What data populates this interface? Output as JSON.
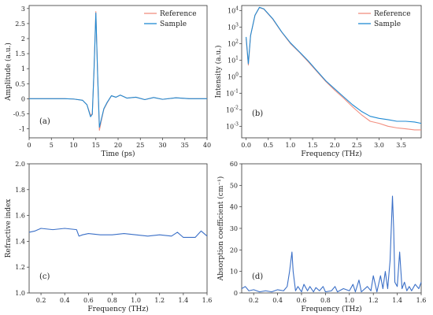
{
  "colors": {
    "reference": "#f28e7f",
    "sample": "#1f8ad3",
    "blue_line": "#3a6fc7"
  },
  "chart_data": [
    {
      "id": "a",
      "type": "line",
      "panel_label": "(a)",
      "xlabel": "Time (ps)",
      "ylabel": "Amplitude (a.u.)",
      "xlim": [
        0,
        40
      ],
      "ylim": [
        -1.3,
        3.1
      ],
      "xticks": [
        0,
        5,
        10,
        15,
        20,
        25,
        30,
        35,
        40
      ],
      "yticks": [
        -1.0,
        -0.5,
        0.0,
        0.5,
        1.0,
        1.5,
        2.0,
        2.5,
        3.0
      ],
      "legend": {
        "position": "top-right",
        "entries": [
          "Reference",
          "Sample"
        ]
      },
      "series": [
        {
          "name": "Reference",
          "x": [
            0,
            8,
            10,
            12,
            13,
            13.8,
            14.2,
            14.6,
            15.0,
            15.4,
            15.8,
            16.2,
            16.8,
            17.5,
            18.5,
            19.5,
            20.5,
            22,
            24,
            26,
            28,
            30,
            33,
            36,
            40
          ],
          "y": [
            0,
            0,
            -0.01,
            -0.05,
            -0.2,
            -0.55,
            -0.5,
            1.0,
            2.9,
            0.8,
            -1.05,
            -0.75,
            -0.35,
            -0.15,
            0.1,
            0.05,
            0.12,
            0.02,
            0.05,
            -0.03,
            0.04,
            -0.02,
            0.03,
            0.0,
            0.0
          ]
        },
        {
          "name": "Sample",
          "x": [
            0,
            8,
            10,
            12,
            13,
            13.8,
            14.2,
            14.6,
            15.0,
            15.4,
            15.8,
            16.2,
            16.8,
            17.5,
            18.5,
            19.5,
            20.5,
            22,
            24,
            26,
            28,
            30,
            33,
            36,
            40
          ],
          "y": [
            0,
            0,
            -0.01,
            -0.05,
            -0.2,
            -0.6,
            -0.52,
            1.0,
            2.85,
            0.8,
            -0.95,
            -0.7,
            -0.33,
            -0.13,
            0.1,
            0.05,
            0.12,
            0.02,
            0.05,
            -0.03,
            0.04,
            -0.02,
            0.03,
            0.0,
            0.0
          ]
        }
      ]
    },
    {
      "id": "b",
      "type": "line",
      "panel_label": "(b)",
      "xlabel": "Frequency (THz)",
      "ylabel": "Intensity (a.u.)",
      "yscale": "log",
      "xlim": [
        -0.1,
        3.95
      ],
      "ylim": [
        0.0002,
        20000
      ],
      "xticks": [
        "0.0",
        "0.5",
        "1.0",
        "1.5",
        "2.0",
        "2.5",
        "3.0",
        "3.5"
      ],
      "yticks": [
        "10^-3",
        "10^-2",
        "10^-1",
        "10^0",
        "10^1",
        "10^2",
        "10^3",
        "10^4"
      ],
      "legend": {
        "position": "top-right",
        "entries": [
          "Reference",
          "Sample"
        ]
      },
      "series": [
        {
          "name": "Reference",
          "x": [
            0.0,
            0.05,
            0.1,
            0.2,
            0.3,
            0.4,
            0.6,
            0.8,
            1.0,
            1.2,
            1.4,
            1.6,
            1.8,
            2.0,
            2.2,
            2.4,
            2.6,
            2.8,
            3.0,
            3.2,
            3.4,
            3.6,
            3.8,
            3.95
          ],
          "y": [
            200,
            5,
            300,
            5000,
            15000,
            12000,
            3000,
            500,
            100,
            30,
            8,
            2,
            0.5,
            0.15,
            0.05,
            0.015,
            0.005,
            0.002,
            0.0015,
            0.001,
            0.0008,
            0.0007,
            0.0006,
            0.0006
          ]
        },
        {
          "name": "Sample",
          "x": [
            0.0,
            0.05,
            0.1,
            0.2,
            0.3,
            0.4,
            0.6,
            0.8,
            1.0,
            1.2,
            1.4,
            1.6,
            1.8,
            2.0,
            2.2,
            2.4,
            2.6,
            2.8,
            3.0,
            3.2,
            3.4,
            3.6,
            3.8,
            3.95
          ],
          "y": [
            250,
            6,
            300,
            5200,
            15500,
            12500,
            3200,
            520,
            110,
            32,
            9,
            2.2,
            0.55,
            0.18,
            0.06,
            0.02,
            0.008,
            0.004,
            0.003,
            0.0025,
            0.002,
            0.002,
            0.0018,
            0.0015
          ]
        }
      ]
    },
    {
      "id": "c",
      "type": "line",
      "panel_label": "(c)",
      "xlabel": "Frequency (THz)",
      "ylabel": "Refractive index",
      "xlim": [
        0.1,
        1.6
      ],
      "ylim": [
        1.0,
        2.0
      ],
      "xticks": [
        "0.2",
        "0.4",
        "0.6",
        "0.8",
        "1.0",
        "1.2",
        "1.4",
        "1.6"
      ],
      "yticks": [
        "1.0",
        "1.2",
        "1.4",
        "1.6",
        "1.8",
        "2.0"
      ],
      "series": [
        {
          "x": [
            0.1,
            0.15,
            0.2,
            0.3,
            0.4,
            0.5,
            0.52,
            0.55,
            0.6,
            0.7,
            0.8,
            0.9,
            1.0,
            1.1,
            1.2,
            1.3,
            1.35,
            1.4,
            1.5,
            1.55,
            1.6
          ],
          "y": [
            1.47,
            1.48,
            1.5,
            1.49,
            1.5,
            1.49,
            1.44,
            1.45,
            1.46,
            1.45,
            1.45,
            1.46,
            1.45,
            1.44,
            1.45,
            1.44,
            1.47,
            1.43,
            1.43,
            1.48,
            1.44
          ]
        }
      ]
    },
    {
      "id": "d",
      "type": "line",
      "panel_label": "(d)",
      "xlabel": "Frequency (THz)",
      "ylabel": "Absorption coefficient (cm⁻¹)",
      "xlim": [
        0.1,
        1.6
      ],
      "ylim": [
        0,
        60
      ],
      "xticks": [
        "0.2",
        "0.4",
        "0.6",
        "0.8",
        "1.0",
        "1.2",
        "1.4",
        "1.6"
      ],
      "yticks": [
        "0",
        "10",
        "20",
        "30",
        "40",
        "50",
        "60"
      ],
      "series": [
        {
          "x": [
            0.1,
            0.13,
            0.16,
            0.2,
            0.25,
            0.3,
            0.35,
            0.4,
            0.45,
            0.48,
            0.5,
            0.52,
            0.53,
            0.55,
            0.57,
            0.6,
            0.62,
            0.65,
            0.67,
            0.7,
            0.72,
            0.75,
            0.78,
            0.8,
            0.85,
            0.88,
            0.9,
            0.95,
            1.0,
            1.03,
            1.05,
            1.08,
            1.1,
            1.15,
            1.18,
            1.2,
            1.23,
            1.26,
            1.28,
            1.3,
            1.32,
            1.34,
            1.36,
            1.37,
            1.38,
            1.4,
            1.42,
            1.44,
            1.46,
            1.48,
            1.5,
            1.52,
            1.55,
            1.58,
            1.6
          ],
          "y": [
            2,
            3,
            1,
            1.5,
            0.5,
            1,
            0.5,
            1.5,
            1,
            3,
            10,
            19,
            10,
            1,
            3,
            0.5,
            4,
            1,
            3,
            0.5,
            2.5,
            1,
            3,
            0.5,
            1,
            3,
            0.5,
            2,
            1,
            4,
            0.5,
            6,
            0.5,
            3,
            1,
            8,
            0.5,
            8,
            2,
            10,
            2,
            15,
            45,
            30,
            5,
            3,
            19,
            2,
            5,
            1,
            3,
            1,
            4,
            2,
            5
          ]
        }
      ]
    }
  ]
}
